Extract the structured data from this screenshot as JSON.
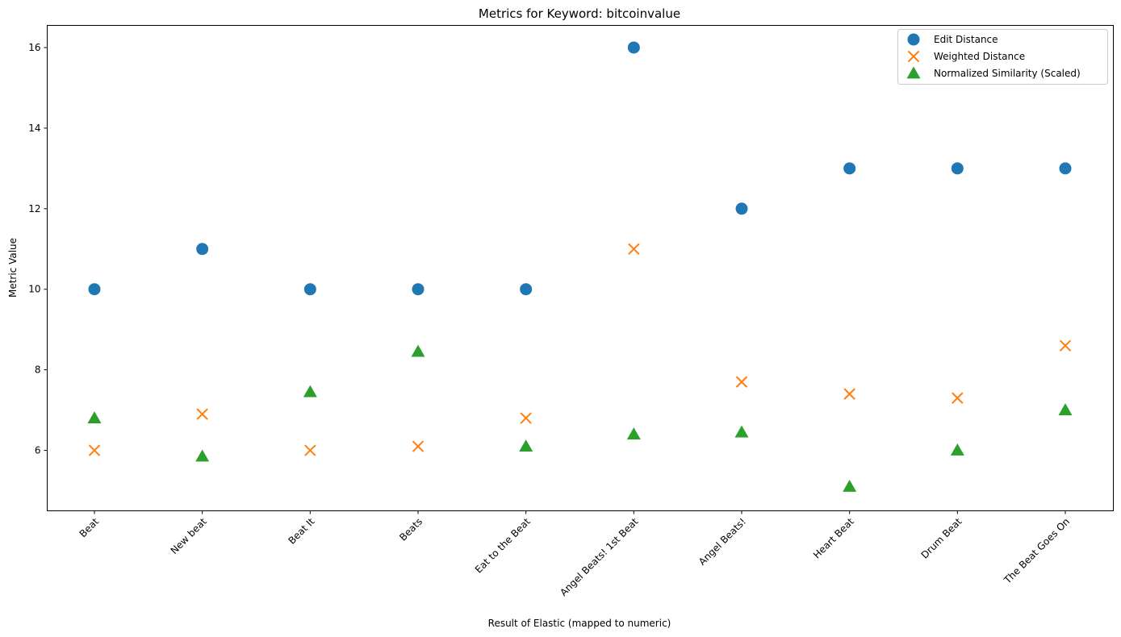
{
  "chart_data": {
    "type": "scatter",
    "title": "Metrics for Keyword: bitcoinvalue",
    "xlabel": "Result of Elastic (mapped to numeric)",
    "ylabel": "Metric Value",
    "categories": [
      "Beat",
      "New beat",
      "Beat It",
      "Beats",
      "Eat to the Beat",
      "Angel Beats! 1st Beat",
      "Angel Beats!",
      "Heart Beat",
      "Drum Beat",
      "The Beat Goes On"
    ],
    "ylim": [
      4.5,
      16.55
    ],
    "yticks": [
      6,
      8,
      10,
      12,
      14,
      16
    ],
    "grid": false,
    "legend_position": "top-right",
    "series": [
      {
        "name": "Edit Distance",
        "marker": "circle",
        "color": "#1f77b4",
        "values": [
          10,
          11,
          10,
          10,
          10,
          16,
          12,
          13,
          13,
          13
        ]
      },
      {
        "name": "Weighted Distance",
        "marker": "x",
        "color": "#ff7f0e",
        "values": [
          6.0,
          6.9,
          6.0,
          6.1,
          6.8,
          11.0,
          7.7,
          7.4,
          7.3,
          8.6
        ]
      },
      {
        "name": "Normalized Similarity (Scaled)",
        "marker": "triangle",
        "color": "#2ca02c",
        "values": [
          6.8,
          5.85,
          7.45,
          8.45,
          6.1,
          6.4,
          6.45,
          5.1,
          6.0,
          7.0
        ]
      }
    ]
  }
}
